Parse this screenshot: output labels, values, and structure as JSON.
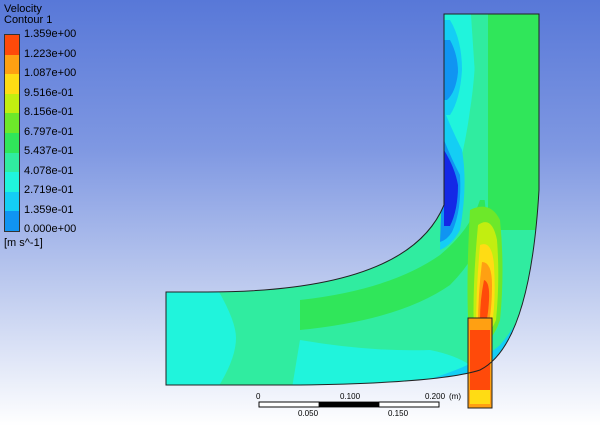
{
  "legend": {
    "title_line1": "Velocity",
    "title_line2": "Contour 1",
    "unit": "[m s^-1]",
    "levels": [
      {
        "label": "1.359e+00",
        "color": "#ff4a0a"
      },
      {
        "label": "1.223e+00",
        "color": "#ffa012"
      },
      {
        "label": "1.087e+00",
        "color": "#ffdc14"
      },
      {
        "label": "9.516e-01",
        "color": "#c2ee10"
      },
      {
        "label": "8.156e-01",
        "color": "#6de82a"
      },
      {
        "label": "6.797e-01",
        "color": "#30e65a"
      },
      {
        "label": "5.437e-01",
        "color": "#30eca0"
      },
      {
        "label": "4.078e-01",
        "color": "#20f4dc"
      },
      {
        "label": "2.719e-01",
        "color": "#14cef4"
      },
      {
        "label": "1.359e-01",
        "color": "#1094f2"
      },
      {
        "label": "0.000e+00",
        "color": "#1428e6"
      }
    ]
  },
  "scale_bar": {
    "labels_top": [
      "0",
      "0.100",
      "0.200"
    ],
    "labels_bottom": [
      "0.050",
      "0.150"
    ],
    "unit": "(m)"
  }
}
